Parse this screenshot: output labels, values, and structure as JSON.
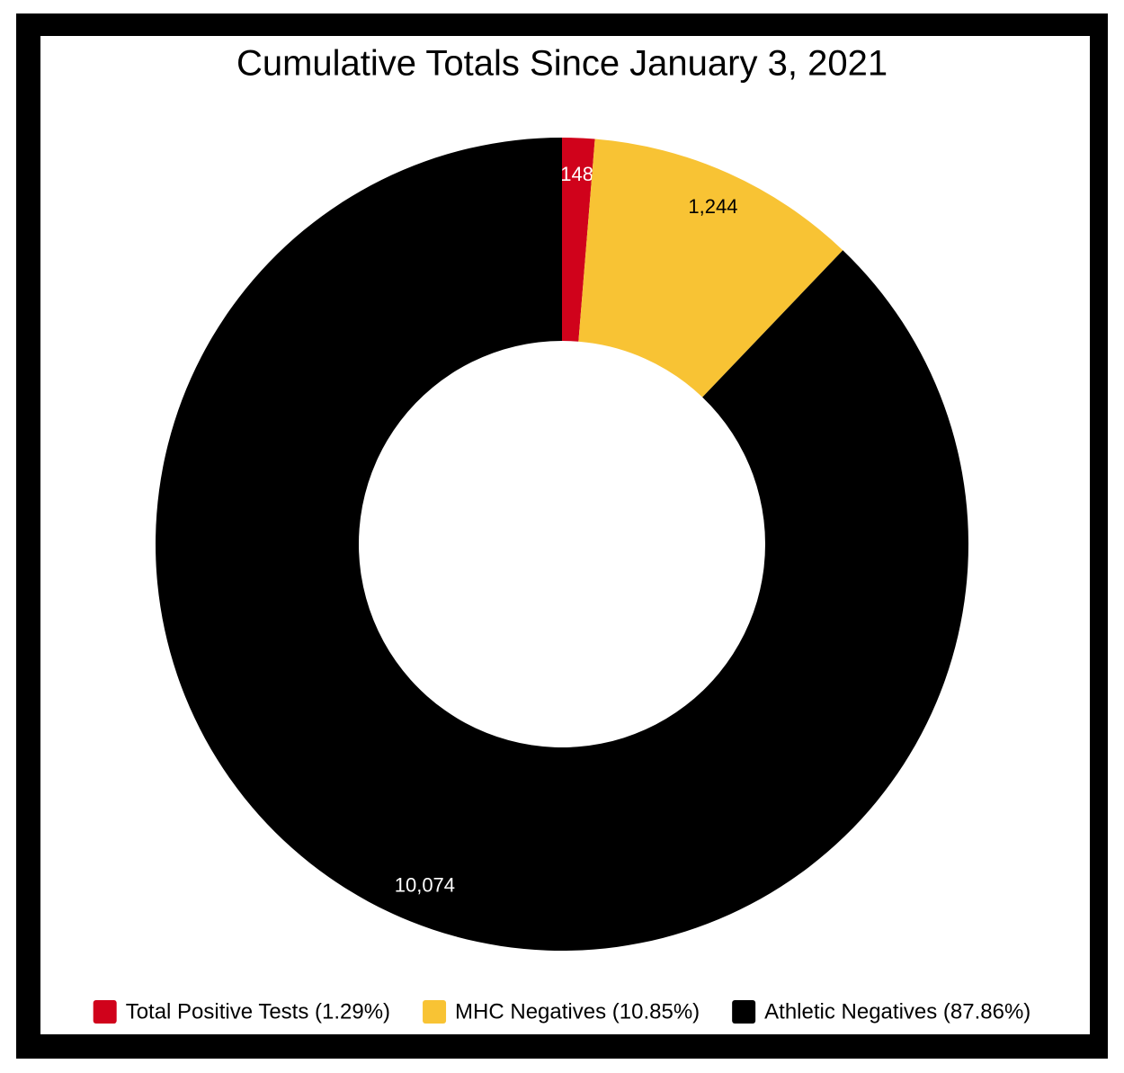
{
  "chart_data": {
    "type": "donut",
    "title": "Cumulative Totals Since January 3, 2021",
    "categories": [
      "Total Positive Tests (1.29%)",
      "MHC Negatives (10.85%)",
      "Athletic Negatives (87.86%)"
    ],
    "values": [
      148,
      1244,
      10074
    ],
    "value_labels": [
      "148",
      "1,244",
      "10,074"
    ],
    "colors": [
      "#d0021b",
      "#f8c334",
      "#000000"
    ],
    "label_colors": [
      "#ffffff",
      "#000000",
      "#ffffff"
    ],
    "legend": "bottom"
  }
}
